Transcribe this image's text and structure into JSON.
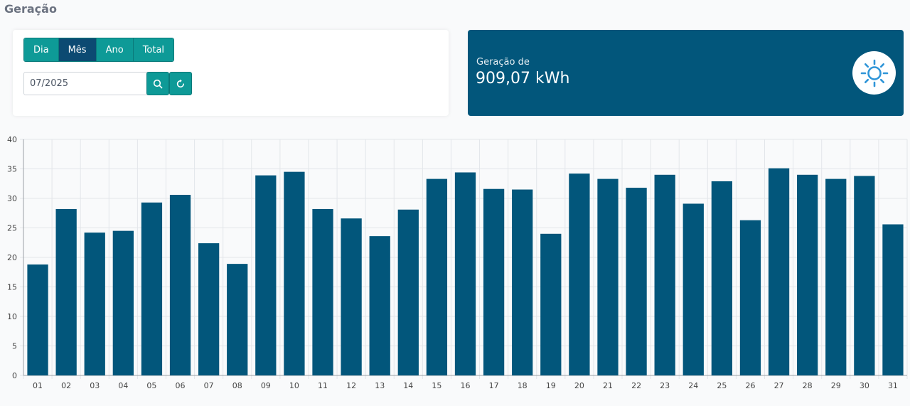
{
  "page": {
    "title": "Geração"
  },
  "filters": {
    "period_options": [
      "Dia",
      "Mês",
      "Ano",
      "Total"
    ],
    "active_period": "Mês",
    "date_value": "07/2025",
    "icons": {
      "search": "search-icon",
      "refresh": "refresh-icon"
    }
  },
  "summary": {
    "label": "Geração de",
    "value": "909,07 kWh",
    "icon": "sun-icon"
  },
  "colors": {
    "primary": "#02567b",
    "accent": "#0e9a97",
    "active": "#0c4a72",
    "bar": "#02567b"
  },
  "chart_data": {
    "type": "bar",
    "categories": [
      "01",
      "02",
      "03",
      "04",
      "05",
      "06",
      "07",
      "08",
      "09",
      "10",
      "11",
      "12",
      "13",
      "14",
      "15",
      "16",
      "17",
      "18",
      "19",
      "20",
      "21",
      "22",
      "23",
      "24",
      "25",
      "26",
      "27",
      "28",
      "29",
      "30",
      "31"
    ],
    "values": [
      18.8,
      28.2,
      24.2,
      24.5,
      29.3,
      30.6,
      22.4,
      18.9,
      33.9,
      34.5,
      28.2,
      26.6,
      23.6,
      28.1,
      33.3,
      34.4,
      31.6,
      31.5,
      24.0,
      34.2,
      33.3,
      31.8,
      34.0,
      29.1,
      32.9,
      26.3,
      35.1,
      34.0,
      33.3,
      33.8,
      25.6
    ],
    "yticks": [
      0,
      5,
      10,
      15,
      20,
      25,
      30,
      35,
      40
    ],
    "ylim": [
      0,
      40
    ],
    "grid": true
  }
}
